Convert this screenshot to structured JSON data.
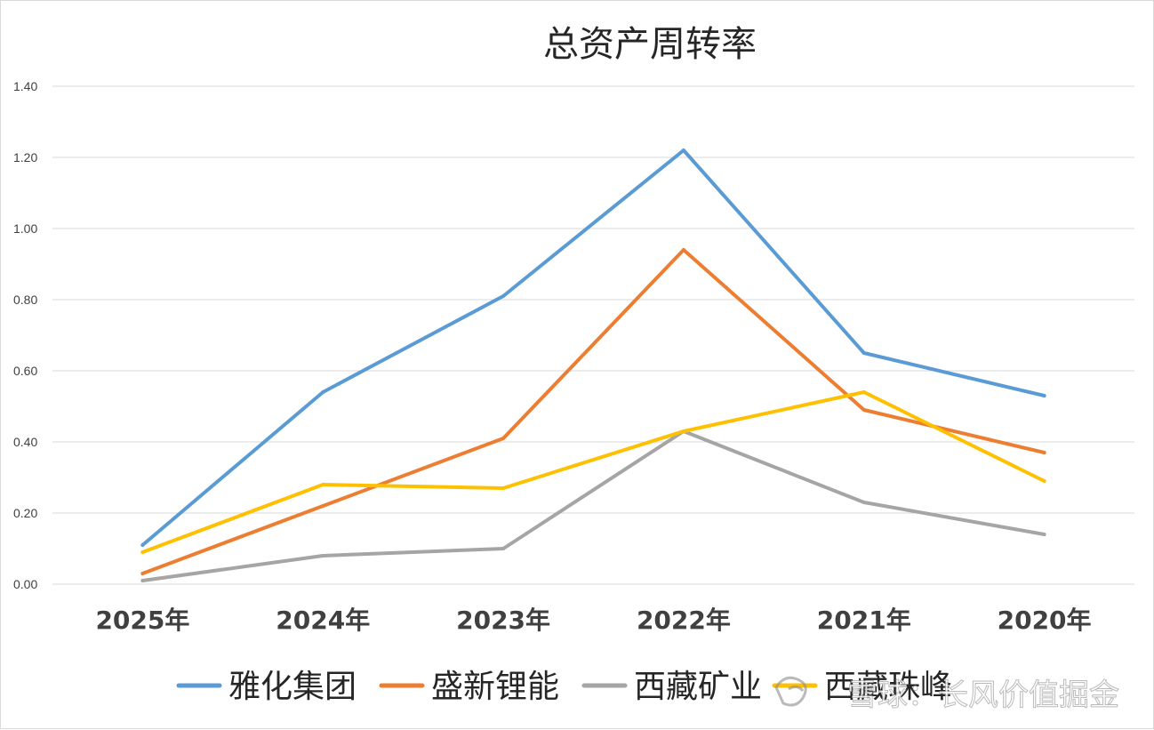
{
  "chart_data": {
    "type": "line",
    "title": "总资产周转率",
    "categories": [
      "2025年",
      "2024年",
      "2023年",
      "2022年",
      "2021年",
      "2020年"
    ],
    "ylim": [
      0,
      1.4
    ],
    "y_ticks": [
      "0.00",
      "0.20",
      "0.40",
      "0.60",
      "0.80",
      "1.00",
      "1.20",
      "1.40"
    ],
    "grid": true,
    "legend_position": "bottom",
    "series": [
      {
        "name": "雅化集团",
        "color": "#5b9bd5",
        "values": [
          0.11,
          0.54,
          0.81,
          1.22,
          0.65,
          0.53
        ]
      },
      {
        "name": "盛新锂能",
        "color": "#ed7d31",
        "values": [
          0.03,
          0.22,
          0.41,
          0.94,
          0.49,
          0.37
        ]
      },
      {
        "name": "西藏矿业",
        "color": "#a5a5a5",
        "values": [
          0.01,
          0.08,
          0.1,
          0.43,
          0.23,
          0.14
        ]
      },
      {
        "name": "西藏珠峰",
        "color": "#ffc000",
        "values": [
          0.09,
          0.28,
          0.27,
          0.43,
          0.54,
          0.29
        ]
      }
    ]
  },
  "watermark": {
    "text": "雪球：长风价值掘金",
    "icon": "snowball-logo-icon"
  }
}
